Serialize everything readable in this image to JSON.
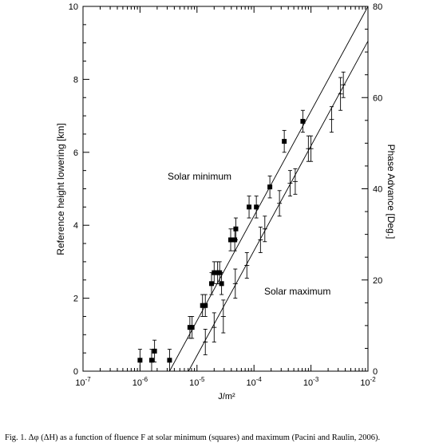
{
  "chart_data": {
    "type": "scatter",
    "x_scale": "log",
    "xlim": [
      1e-07,
      0.01
    ],
    "ylim": [
      0,
      10
    ],
    "y2lim": [
      0,
      80
    ],
    "xlabel": "J/m²",
    "ylabel": "Reference height lowering [km]",
    "y2label": "Phase Advance [Deg.]",
    "x_ticks": [
      {
        "value": 1e-07,
        "base": "10",
        "exp": "-7"
      },
      {
        "value": 1e-06,
        "base": "10",
        "exp": "-6"
      },
      {
        "value": 1e-05,
        "base": "10",
        "exp": "-5"
      },
      {
        "value": 0.0001,
        "base": "10",
        "exp": "-4"
      },
      {
        "value": 0.001,
        "base": "10",
        "exp": "-3"
      },
      {
        "value": 0.01,
        "base": "10",
        "exp": "-2"
      }
    ],
    "y_ticks": [
      "0",
      "2",
      "4",
      "6",
      "8",
      "10"
    ],
    "y2_ticks": [
      "0",
      "20",
      "40",
      "60",
      "80"
    ],
    "grid": false,
    "annotations": [
      "Solar minimum",
      "Solar maximum"
    ],
    "series": [
      {
        "marker": "filled-square",
        "points": [
          {
            "x": 1e-06,
            "y": 0.3,
            "err": 0.3
          },
          {
            "x": 1.6e-06,
            "y": 0.3,
            "err": 0.3
          },
          {
            "x": 1.8e-06,
            "y": 0.55,
            "err": 0.3
          },
          {
            "x": 3.3e-06,
            "y": 0.3,
            "err": 0.3
          },
          {
            "x": 7.5e-06,
            "y": 1.2,
            "err": 0.3
          },
          {
            "x": 8.2e-06,
            "y": 1.2,
            "err": 0.3
          },
          {
            "x": 1.25e-05,
            "y": 1.8,
            "err": 0.3
          },
          {
            "x": 1.4e-05,
            "y": 1.8,
            "err": 0.3
          },
          {
            "x": 1.8e-05,
            "y": 2.4,
            "err": 0.3
          },
          {
            "x": 2e-05,
            "y": 2.7,
            "err": 0.3
          },
          {
            "x": 2.3e-05,
            "y": 2.7,
            "err": 0.3
          },
          {
            "x": 2.5e-05,
            "y": 2.7,
            "err": 0.3
          },
          {
            "x": 2.7e-05,
            "y": 2.4,
            "err": 0.3
          },
          {
            "x": 3.9e-05,
            "y": 3.6,
            "err": 0.3
          },
          {
            "x": 4.6e-05,
            "y": 3.6,
            "err": 0.3
          },
          {
            "x": 4.8e-05,
            "y": 3.9,
            "err": 0.3
          },
          {
            "x": 8.2e-05,
            "y": 4.5,
            "err": 0.3
          },
          {
            "x": 0.00011,
            "y": 4.5,
            "err": 0.3
          },
          {
            "x": 0.00019,
            "y": 5.05,
            "err": 0.3
          },
          {
            "x": 0.00034,
            "y": 6.3,
            "err": 0.3
          },
          {
            "x": 0.00072,
            "y": 6.85,
            "err": 0.3
          }
        ],
        "fit_line": [
          {
            "x": 3.3e-06,
            "y": 0
          },
          {
            "x": 0.01,
            "y": 10
          }
        ]
      },
      {
        "marker": "plus",
        "points": [
          {
            "x": 1.4e-05,
            "y": 0.8,
            "err": 0.35
          },
          {
            "x": 2e-05,
            "y": 1.2,
            "err": 0.4
          },
          {
            "x": 2.9e-05,
            "y": 1.5,
            "err": 0.45
          },
          {
            "x": 4.7e-05,
            "y": 2.4,
            "err": 0.4
          },
          {
            "x": 7.5e-05,
            "y": 2.9,
            "err": 0.35
          },
          {
            "x": 0.00013,
            "y": 3.6,
            "err": 0.35
          },
          {
            "x": 0.000155,
            "y": 3.9,
            "err": 0.35
          },
          {
            "x": 0.00028,
            "y": 4.6,
            "err": 0.35
          },
          {
            "x": 0.00043,
            "y": 5.15,
            "err": 0.35
          },
          {
            "x": 0.00053,
            "y": 5.2,
            "err": 0.35
          },
          {
            "x": 0.0009,
            "y": 6.1,
            "err": 0.35
          },
          {
            "x": 0.001,
            "y": 6.1,
            "err": 0.35
          },
          {
            "x": 0.0023,
            "y": 6.9,
            "err": 0.35
          },
          {
            "x": 0.0033,
            "y": 7.6,
            "err": 0.45
          },
          {
            "x": 0.0037,
            "y": 7.85,
            "err": 0.35
          }
        ],
        "fit_line": [
          {
            "x": 7.1e-06,
            "y": 0
          },
          {
            "x": 0.01,
            "y": 9.05
          }
        ]
      }
    ]
  },
  "caption": "Fig. 1. Δφ (ΔH) as a function of  fluence F at solar minimum (squares) and maximum (Pacini and Raulin, 2006)."
}
